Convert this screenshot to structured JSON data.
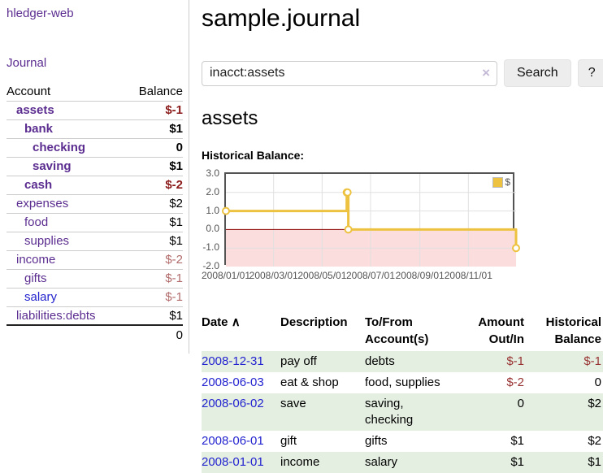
{
  "sidebar": {
    "app_title": "hledger-web",
    "journal_label": "Journal",
    "accounts_table": {
      "headers": [
        "Account",
        "Balance"
      ],
      "rows": [
        {
          "name": "assets",
          "balance": "$-1",
          "depth": 1,
          "bold": true,
          "balance_class": "neg-strong"
        },
        {
          "name": "bank",
          "balance": "$1",
          "depth": 2,
          "bold": true,
          "balance_class": ""
        },
        {
          "name": "checking",
          "balance": "0",
          "depth": 3,
          "bold": true,
          "balance_class": ""
        },
        {
          "name": "saving",
          "balance": "$1",
          "depth": 3,
          "bold": true,
          "balance_class": ""
        },
        {
          "name": "cash",
          "balance": "$-2",
          "depth": 2,
          "bold": true,
          "balance_class": "neg-strong"
        },
        {
          "name": "expenses",
          "balance": "$2",
          "depth": 1,
          "bold": false,
          "balance_class": ""
        },
        {
          "name": "food",
          "balance": "$1",
          "depth": 2,
          "bold": false,
          "balance_class": ""
        },
        {
          "name": "supplies",
          "balance": "$1",
          "depth": 2,
          "bold": false,
          "balance_class": ""
        },
        {
          "name": "income",
          "balance": "$-2",
          "depth": 1,
          "bold": false,
          "balance_class": "neg-soft"
        },
        {
          "name": "gifts",
          "balance": "$-1",
          "depth": 2,
          "bold": false,
          "balance_class": "neg-soft"
        },
        {
          "name": "salary",
          "balance": "$-1",
          "depth": 2,
          "bold": false,
          "balance_class": "neg-soft",
          "link_color": "blue"
        },
        {
          "name": "liabilities:debts",
          "balance": "$1",
          "depth": 1,
          "bold": false,
          "balance_class": ""
        }
      ],
      "total": "0"
    }
  },
  "header": {
    "title": "sample.journal"
  },
  "search": {
    "value": "inacct:assets",
    "clear_icon": "×",
    "button_label": "Search",
    "help_label": "?"
  },
  "account_page": {
    "title": "assets",
    "chart_label": "Historical Balance:"
  },
  "chart_data": {
    "type": "line",
    "step": true,
    "title": "Historical Balance:",
    "series": [
      {
        "name": "$",
        "x": [
          "2008-01-01",
          "2008-06-01",
          "2008-06-02",
          "2008-06-03",
          "2008-12-31"
        ],
        "values": [
          1,
          2,
          2,
          0,
          -1
        ]
      }
    ],
    "x_range": [
      "2008-01-01",
      "2008-12-31"
    ],
    "ylim": [
      -2,
      3
    ],
    "y_ticks": [
      3.0,
      2.0,
      1.0,
      0.0,
      -1.0,
      -2.0
    ],
    "x_ticks": [
      "2008/01/01",
      "2008/03/01",
      "2008/05/01",
      "2008/07/01",
      "2008/09/01",
      "2008/11/01"
    ],
    "grid": true,
    "legend_position": "top-right",
    "line_color": "#EDC240",
    "marker_fill": "#ffffff",
    "negative_fill": "#fbdddd",
    "zero_line_color": "#8b0000",
    "grid_color": "#e0e0e0"
  },
  "transactions_table": {
    "headers": [
      "Date",
      "Description",
      "To/From Account(s)",
      "Amount Out/In",
      "Historical Balance"
    ],
    "sort_icon": "∧",
    "rows": [
      {
        "date": "2008-12-31",
        "description": "pay off",
        "accounts": "debts",
        "amount": "$-1",
        "amount_neg": true,
        "balance": "$-1",
        "balance_neg": true
      },
      {
        "date": "2008-06-03",
        "description": "eat & shop",
        "accounts": "food, supplies",
        "amount": "$-2",
        "amount_neg": true,
        "balance": "0",
        "balance_neg": false
      },
      {
        "date": "2008-06-02",
        "description": "save",
        "accounts": "saving, checking",
        "amount": "0",
        "amount_neg": false,
        "balance": "$2",
        "balance_neg": false
      },
      {
        "date": "2008-06-01",
        "description": "gift",
        "accounts": "gifts",
        "amount": "$1",
        "amount_neg": false,
        "balance": "$2",
        "balance_neg": false
      },
      {
        "date": "2008-01-01",
        "description": "income",
        "accounts": "salary",
        "amount": "$1",
        "amount_neg": false,
        "balance": "$1",
        "balance_neg": false
      }
    ]
  },
  "colors": {
    "link_purple": "#5b2d90",
    "link_blue": "#2323cf",
    "negative_strong": "#8b1b1b",
    "negative_soft": "#b26b6b",
    "table_negative": "#993333",
    "row_stripe_green": "#e4efe2",
    "chart_border": "#545454",
    "button_bg": "#ededed"
  }
}
